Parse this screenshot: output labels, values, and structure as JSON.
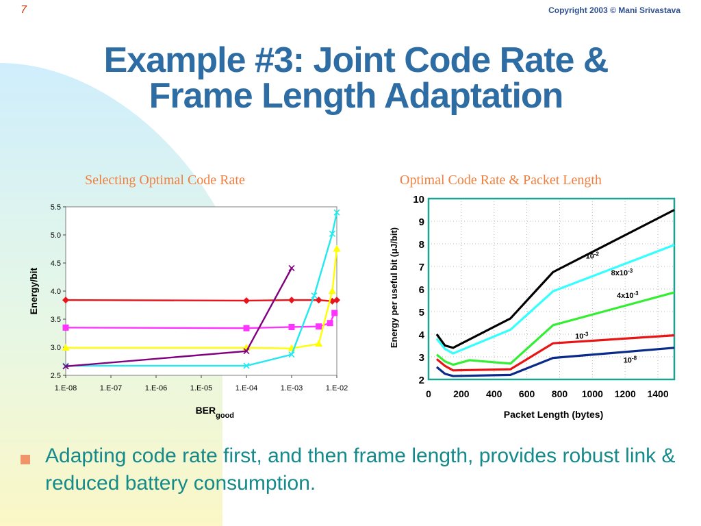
{
  "slide": {
    "number": "7",
    "copyright": "Copyright 2003 © Mani Srivastava",
    "title_line1": "Example #3: Joint Code Rate &",
    "title_line2": "Frame Length Adaptation",
    "bullet": "Adapting code rate first, and then frame length, provides robust link & reduced battery consumption."
  },
  "colors": {
    "title": "#2e6da4",
    "chart_title": "#f08040",
    "bullet_text": "#158a8a",
    "bullet_marker": "#f0956a"
  },
  "chart_data": [
    {
      "type": "line",
      "title": "Selecting Optimal Code Rate",
      "xlabel": "BER",
      "xlabel_sub": "good",
      "ylabel": "Energy/bit",
      "xscale": "log",
      "xlim_exp": [
        -8,
        -2
      ],
      "xtick_labels": [
        "1.E-08",
        "1.E-07",
        "1.E-06",
        "1.E-05",
        "1.E-04",
        "1.E-03",
        "1.E-02"
      ],
      "ylim": [
        2.5,
        5.5
      ],
      "ytick_labels": [
        "2.5",
        "3.0",
        "3.5",
        "4.0",
        "4.5",
        "5.0",
        "5.5"
      ],
      "yticks": [
        2.5,
        3.0,
        3.5,
        4.0,
        4.5,
        5.0,
        5.5
      ],
      "series": [
        {
          "color": "#e8141c",
          "marker": "diamond",
          "x_exp": [
            -8,
            -4,
            -3,
            -2.4,
            -2.1,
            -2
          ],
          "y": [
            3.84,
            3.83,
            3.84,
            3.84,
            3.82,
            3.84
          ]
        },
        {
          "color": "#ff33ff",
          "marker": "square",
          "x_exp": [
            -8,
            -4,
            -3,
            -2.4,
            -2.15,
            -2.05
          ],
          "y": [
            3.35,
            3.34,
            3.36,
            3.37,
            3.43,
            3.61
          ]
        },
        {
          "color": "#ffff00",
          "marker": "triangle",
          "x_exp": [
            -8,
            -4,
            -3,
            -2.4,
            -2.1,
            -2
          ],
          "y": [
            2.99,
            2.99,
            2.98,
            3.06,
            4.0,
            4.75
          ]
        },
        {
          "color": "#22e8f0",
          "marker": "x",
          "x_exp": [
            -8,
            -4,
            -3,
            -2.5,
            -2.1,
            -2
          ],
          "y": [
            2.67,
            2.67,
            2.87,
            3.92,
            5.02,
            5.4
          ]
        },
        {
          "color": "#800080",
          "marker": "x",
          "x_exp": [
            -8,
            -4,
            -3
          ],
          "y": [
            2.66,
            2.93,
            4.41
          ]
        }
      ]
    },
    {
      "type": "line",
      "title": "Optimal Code Rate & Packet Length",
      "xlabel": "Packet Length (bytes)",
      "ylabel": "Energy per useful bit (μJ/bit)",
      "xlim": [
        0,
        1500
      ],
      "xticks": [
        0,
        200,
        400,
        600,
        800,
        1000,
        1200,
        1400
      ],
      "xtick_labels": [
        "0",
        "200",
        "400",
        "600",
        "800",
        "1000",
        "1200",
        "1400"
      ],
      "ylim": [
        2,
        10
      ],
      "yticks": [
        2,
        3,
        4,
        5,
        6,
        7,
        8,
        9,
        10
      ],
      "ytick_labels": [
        "2",
        "3",
        "4",
        "5",
        "6",
        "7",
        "8",
        "9",
        "10"
      ],
      "series": [
        {
          "label": "10",
          "label_exp": "-2",
          "color": "#000000",
          "x": [
            50,
            100,
            150,
            500,
            760,
            1500
          ],
          "y": [
            4.0,
            3.5,
            3.4,
            4.7,
            6.75,
            9.5
          ],
          "label_at": [
            1000,
            7.35
          ]
        },
        {
          "label": "8x10",
          "label_exp": "-3",
          "color": "#33ffff",
          "x": [
            50,
            100,
            150,
            500,
            760,
            1500
          ],
          "y": [
            3.8,
            3.35,
            3.15,
            4.2,
            5.9,
            7.95
          ],
          "label_at": [
            1180,
            6.6
          ]
        },
        {
          "label": "4x10",
          "label_exp": "-3",
          "color": "#33ee33",
          "x": [
            50,
            100,
            150,
            250,
            500,
            760,
            1500
          ],
          "y": [
            3.1,
            2.8,
            2.65,
            2.85,
            2.7,
            4.4,
            5.85
          ],
          "label_at": [
            1215,
            5.6
          ]
        },
        {
          "label": "10",
          "label_exp": "-3",
          "color": "#e81414",
          "x": [
            50,
            100,
            150,
            500,
            760,
            1500
          ],
          "y": [
            2.9,
            2.6,
            2.4,
            2.45,
            3.6,
            3.95
          ],
          "label_at": [
            935,
            3.8
          ]
        },
        {
          "label": "10",
          "label_exp": "-8",
          "color": "#0a2a8a",
          "x": [
            50,
            100,
            150,
            500,
            760,
            1500
          ],
          "y": [
            2.55,
            2.25,
            2.15,
            2.2,
            2.95,
            3.4
          ],
          "label_at": [
            1230,
            2.75
          ]
        }
      ]
    }
  ]
}
